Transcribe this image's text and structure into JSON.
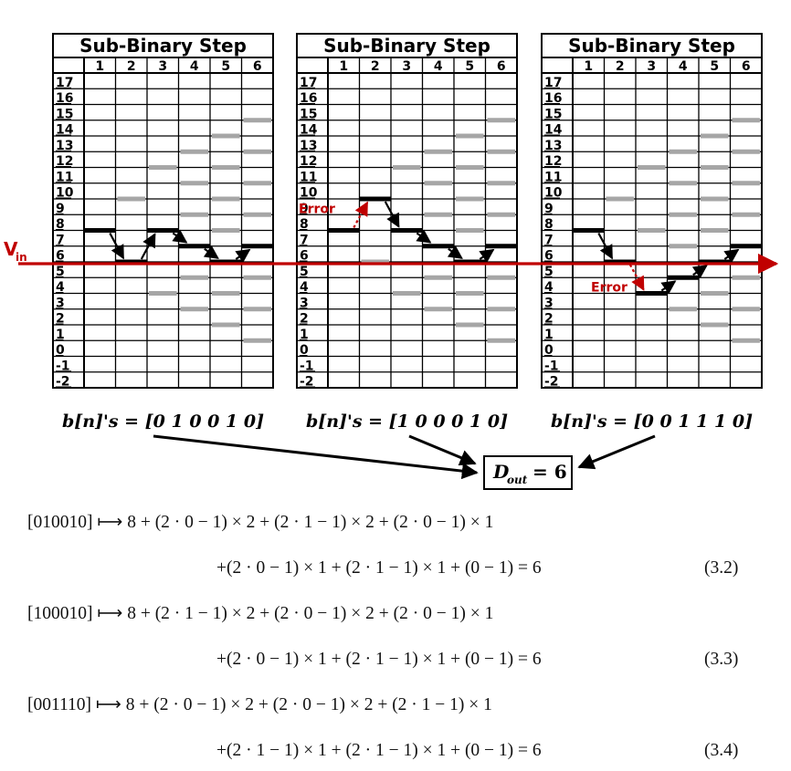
{
  "panels": [
    {
      "title": "Sub-Binary Step",
      "steps": [
        "1",
        "2",
        "3",
        "4",
        "5",
        "6"
      ],
      "levels": [
        "17",
        "16",
        "15",
        "14",
        "13",
        "12",
        "11",
        "10",
        "9",
        "8",
        "7",
        "6",
        "5",
        "4",
        "3",
        "2",
        "1",
        "0",
        "-1",
        "-2"
      ],
      "bits_label": "b[n]'s = [0 1 0 0 1 0]",
      "path": [
        8,
        6,
        8,
        7,
        6,
        7
      ],
      "error_label": "",
      "gray_marks": [
        [],
        [
          10
        ],
        [
          12,
          4
        ],
        [
          13,
          11,
          9,
          5,
          3
        ],
        [
          14,
          12,
          10,
          8,
          4,
          2
        ],
        [
          15,
          13,
          11,
          9,
          5,
          3,
          1
        ]
      ]
    },
    {
      "title": "Sub-Binary Step",
      "steps": [
        "1",
        "2",
        "3",
        "4",
        "5",
        "6"
      ],
      "levels": [
        "17",
        "16",
        "15",
        "14",
        "13",
        "12",
        "11",
        "10",
        "9",
        "8",
        "7",
        "6",
        "5",
        "4",
        "3",
        "2",
        "1",
        "0",
        "-1",
        "-2"
      ],
      "bits_label": "b[n]'s = [1 0 0 0 1 0]",
      "path": [
        8,
        10,
        8,
        7,
        6,
        7
      ],
      "error_label": "Error",
      "gray_marks": [
        [],
        [
          6
        ],
        [
          12,
          4
        ],
        [
          13,
          11,
          9,
          5,
          3
        ],
        [
          14,
          12,
          10,
          8,
          4,
          2
        ],
        [
          15,
          13,
          11,
          9,
          5,
          3,
          1
        ]
      ]
    },
    {
      "title": "Sub-Binary Step",
      "steps": [
        "1",
        "2",
        "3",
        "4",
        "5",
        "6"
      ],
      "levels": [
        "17",
        "16",
        "15",
        "14",
        "13",
        "12",
        "11",
        "10",
        "9",
        "8",
        "7",
        "6",
        "5",
        "4",
        "3",
        "2",
        "1",
        "0",
        "-1",
        "-2"
      ],
      "bits_label": "b[n]'s = [0 0 1 1 1 0]",
      "path": [
        8,
        6,
        4,
        5,
        6,
        7
      ],
      "error_label": "Error",
      "gray_marks": [
        [],
        [
          10
        ],
        [
          12,
          8
        ],
        [
          13,
          11,
          9,
          7,
          3
        ],
        [
          14,
          12,
          10,
          8,
          4,
          2
        ],
        [
          15,
          13,
          11,
          9,
          5,
          3,
          1
        ]
      ]
    }
  ],
  "vin_label": "V",
  "vin_subscript": "in",
  "dout_label": "D",
  "dout_subscript": "out",
  "dout_value": "= 6",
  "equations": [
    {
      "line1": "[010010] ⟼ 8 + (2 · 0 − 1) × 2 + (2 · 1 − 1) × 2 + (2 · 0 − 1) × 1",
      "line2": "+(2 · 0 − 1) × 1 + (2 · 1 − 1) × 1 + (0 − 1) = 6",
      "number": "(3.2)"
    },
    {
      "line1": "[100010] ⟼ 8 + (2 · 1 − 1) × 2 + (2 · 0 − 1) × 2 + (2 · 0 − 1) × 1",
      "line2": "+(2 · 0 − 1) × 1 + (2 · 1 − 1) × 1 + (0 − 1) = 6",
      "number": "(3.3)"
    },
    {
      "line1": "[001110] ⟼ 8 + (2 · 0 − 1) × 2 + (2 · 0 − 1) × 2 + (2 · 1 − 1) × 1",
      "line2": "+(2 · 1 − 1) × 1 + (2 · 1 − 1) × 1 + (0 − 1) = 6",
      "number": "(3.4)"
    }
  ],
  "colors": {
    "vin_line": "#c00000",
    "error": "#c00000",
    "path": "#000000",
    "gray_mark": "#a6a6a6"
  }
}
